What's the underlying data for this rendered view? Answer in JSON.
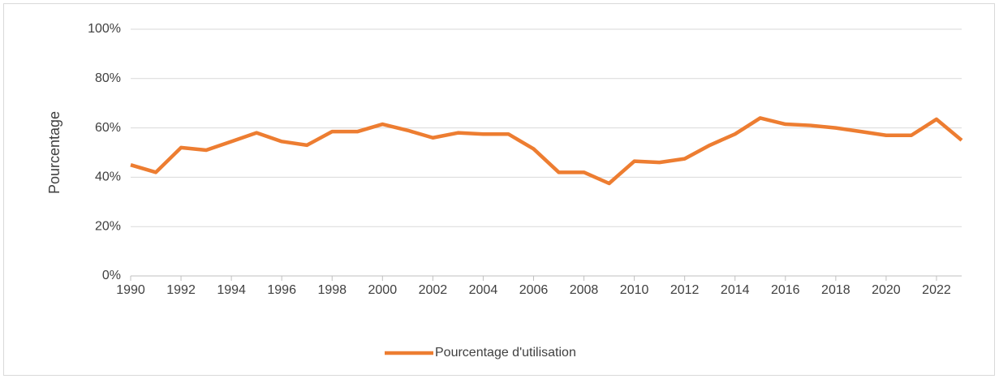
{
  "chart_data": {
    "type": "line",
    "y_label": "Pourcentage",
    "x": [
      1990,
      1991,
      1992,
      1993,
      1994,
      1995,
      1996,
      1997,
      1998,
      1999,
      2000,
      2001,
      2002,
      2003,
      2004,
      2005,
      2006,
      2007,
      2008,
      2009,
      2010,
      2011,
      2012,
      2013,
      2014,
      2015,
      2016,
      2017,
      2018,
      2019,
      2020,
      2021,
      2022,
      2023
    ],
    "series": [
      {
        "name": "Pourcentage d'utilisation",
        "color": "#ed7d31",
        "values": [
          45,
          42,
          52,
          51,
          54.5,
          58,
          54.5,
          53,
          58.5,
          58.5,
          61.5,
          59,
          56,
          58,
          57.5,
          57.5,
          51.5,
          42,
          42,
          37.5,
          46.5,
          46,
          47.5,
          53,
          57.5,
          64,
          61.5,
          61,
          60,
          58.5,
          57,
          57,
          63.5,
          55
        ]
      }
    ],
    "xlim": [
      1990,
      2023
    ],
    "xticks": [
      1990,
      1992,
      1994,
      1996,
      1998,
      2000,
      2002,
      2004,
      2006,
      2008,
      2010,
      2012,
      2014,
      2016,
      2018,
      2020,
      2022
    ],
    "ylim": [
      0,
      100
    ],
    "yticks": [
      {
        "value": 0,
        "label": "0%"
      },
      {
        "value": 20,
        "label": "20%"
      },
      {
        "value": 40,
        "label": "40%"
      },
      {
        "value": 60,
        "label": "60%"
      },
      {
        "value": 80,
        "label": "80%"
      },
      {
        "value": 100,
        "label": "100%"
      }
    ],
    "grid": true,
    "legend": "bottom"
  }
}
